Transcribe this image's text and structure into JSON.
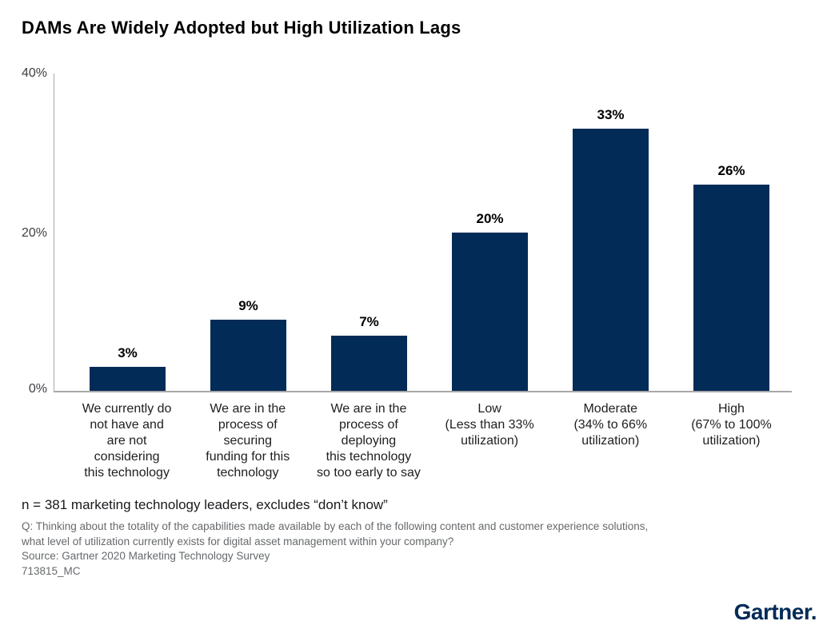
{
  "title": "DAMs Are Widely Adopted but High Utilization Lags",
  "chart_data": {
    "type": "bar",
    "title": "DAMs Are Widely Adopted but High Utilization Lags",
    "categories": [
      "We currently do not have and are not considering this technology",
      "We are in the process of securing funding for this technology",
      "We are in the process of deploying this technology so too early to say",
      "Low (Less than 33% utilization)",
      "Moderate (34% to 66% utilization)",
      "High (67% to 100% utilization)"
    ],
    "category_lines": [
      "We currently do\nnot have and\nare not\nconsidering\nthis technology",
      "We are in the\nprocess of\nsecuring\nfunding for this\ntechnology",
      "We are in the\nprocess of\ndeploying\nthis technology\nso too early to say",
      "Low\n(Less than 33%\nutilization)",
      "Moderate\n(34% to 66%\nutilization)",
      "High\n(67% to 100%\nutilization)"
    ],
    "values": [
      3,
      9,
      7,
      20,
      33,
      26
    ],
    "value_labels": [
      "3%",
      "9%",
      "7%",
      "20%",
      "33%",
      "26%"
    ],
    "xlabel": "",
    "ylabel": "",
    "ylim": [
      0,
      40
    ],
    "yticks": [
      "40%",
      "20%",
      "0%"
    ],
    "grid": false,
    "legend": false,
    "bar_color": "#032b57"
  },
  "footer": {
    "note": "n = 381 marketing technology leaders, excludes “don’t know”",
    "question": "Q: Thinking about the totality of the capabilities made available by each of the following content and customer experience solutions,\nwhat level of utilization currently exists for digital asset management within your company?",
    "source": "Source: Gartner 2020 Marketing Technology Survey",
    "document_id": "713815_MC"
  },
  "branding": {
    "logo_text": "Gartner.",
    "logo_color": "#032b57"
  }
}
